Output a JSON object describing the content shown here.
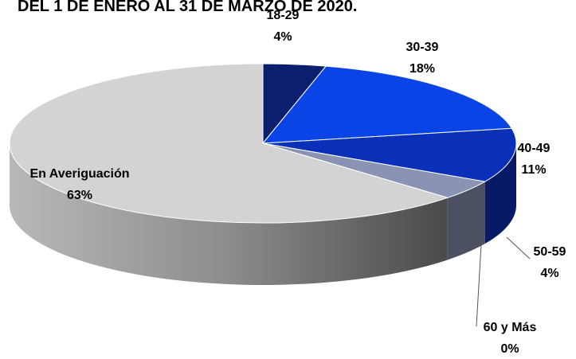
{
  "chart_data": {
    "type": "pie",
    "title": "DEL 1 DE ENERO AL 31 DE MARZO DE 2020.",
    "categories": [
      "18-29",
      "30-39",
      "40-49",
      "50-59",
      "60 y Más",
      "En Averiguación"
    ],
    "values": [
      4,
      18,
      11,
      4,
      0,
      63
    ],
    "value_labels": [
      "4%",
      "18%",
      "11%",
      "4%",
      "0%",
      "63%"
    ],
    "colors": [
      "#0b1f6e",
      "#0a44e6",
      "#0a2fb8",
      "#8a93b3",
      "#3a3a3a",
      "#d3d3d3"
    ]
  }
}
